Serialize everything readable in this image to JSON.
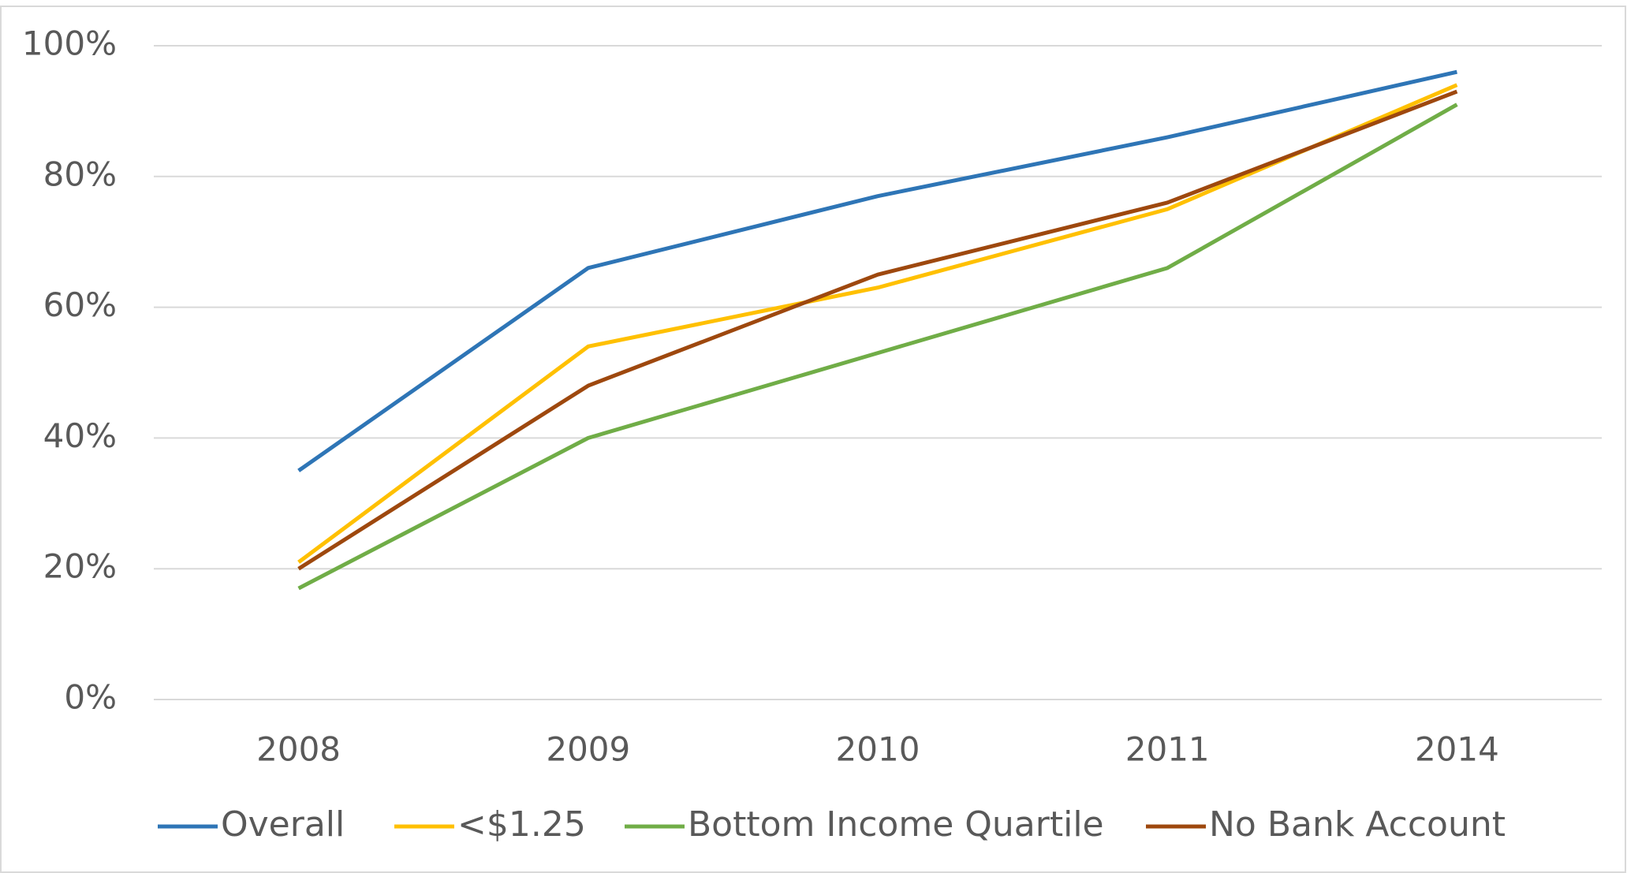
{
  "chart_data": {
    "type": "line",
    "categories": [
      "2008",
      "2009",
      "2010",
      "2011",
      "2014"
    ],
    "series": [
      {
        "name": "Overall",
        "color": "#2e75b6",
        "values": [
          35,
          66,
          77,
          86,
          96
        ]
      },
      {
        "name": "<$1.25",
        "color": "#ffc000",
        "values": [
          21,
          54,
          63,
          75,
          94
        ]
      },
      {
        "name": "Bottom Income Quartile",
        "color": "#70ad47",
        "values": [
          17,
          40,
          53,
          66,
          91
        ]
      },
      {
        "name": "No Bank Account",
        "color": "#9e480e",
        "values": [
          20,
          48,
          65,
          76,
          93
        ]
      }
    ],
    "ylim": [
      0,
      100
    ],
    "yticks": [
      {
        "value": 0,
        "label": "0%"
      },
      {
        "value": 20,
        "label": "20%"
      },
      {
        "value": 40,
        "label": "40%"
      },
      {
        "value": 60,
        "label": "60%"
      },
      {
        "value": 80,
        "label": "80%"
      },
      {
        "value": 100,
        "label": "100%"
      }
    ],
    "grid": true,
    "legend": "bottom"
  }
}
